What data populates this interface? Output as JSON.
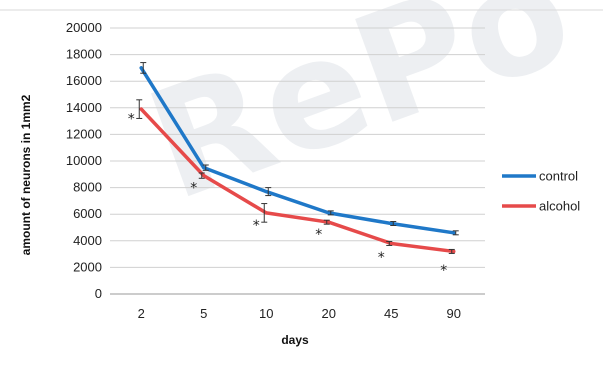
{
  "chart_data": {
    "type": "line",
    "title": "",
    "xlabel": "days",
    "ylabel": "amount of neurons in 1mm2",
    "categories": [
      "2",
      "5",
      "10",
      "20",
      "45",
      "90"
    ],
    "ylim": [
      0,
      20000
    ],
    "yticks": [
      "0",
      "2000",
      "4000",
      "6000",
      "8000",
      "10000",
      "12000",
      "14000",
      "16000",
      "18000",
      "20000"
    ],
    "grid": "horizontal",
    "legend": "right",
    "series": [
      {
        "name": "control",
        "color": "#1f78c8",
        "values": [
          17000,
          9500,
          7700,
          6100,
          5300,
          4600
        ],
        "errors": [
          400,
          200,
          300,
          150,
          150,
          150
        ]
      },
      {
        "name": "alcohol",
        "color": "#e64a4a",
        "values": [
          13900,
          8900,
          6100,
          5400,
          3800,
          3200
        ],
        "errors": [
          700,
          200,
          700,
          150,
          150,
          150
        ]
      }
    ],
    "significance_marker": "*",
    "significance_values": [
      13200,
      8000,
      5200,
      4500,
      2800,
      1800
    ]
  }
}
